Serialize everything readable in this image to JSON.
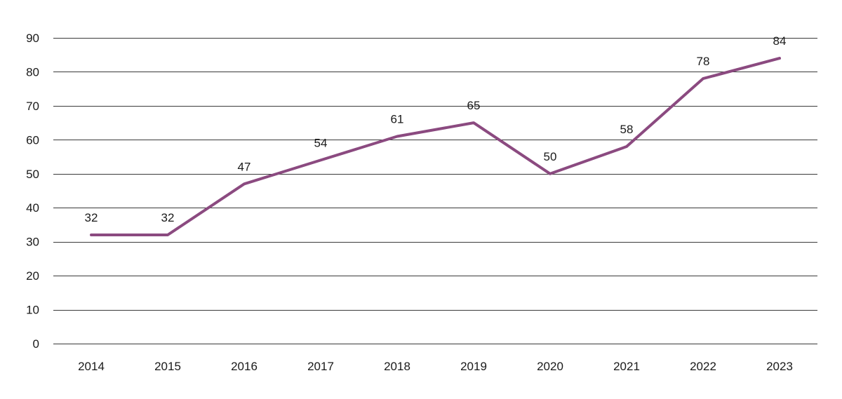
{
  "chart_data": {
    "type": "line",
    "title": "",
    "xlabel": "",
    "ylabel": "",
    "categories": [
      "2014",
      "2015",
      "2016",
      "2017",
      "2018",
      "2019",
      "2020",
      "2021",
      "2022",
      "2023"
    ],
    "series": [
      {
        "values": [
          32,
          32,
          47,
          54,
          61,
          65,
          50,
          58,
          78,
          84
        ],
        "color": "#8b4a80"
      }
    ],
    "ylim": [
      0,
      90
    ],
    "yticks": [
      0,
      10,
      20,
      30,
      40,
      50,
      60,
      70,
      80,
      90
    ],
    "data_labels": true,
    "grid": true,
    "legend": "none"
  }
}
